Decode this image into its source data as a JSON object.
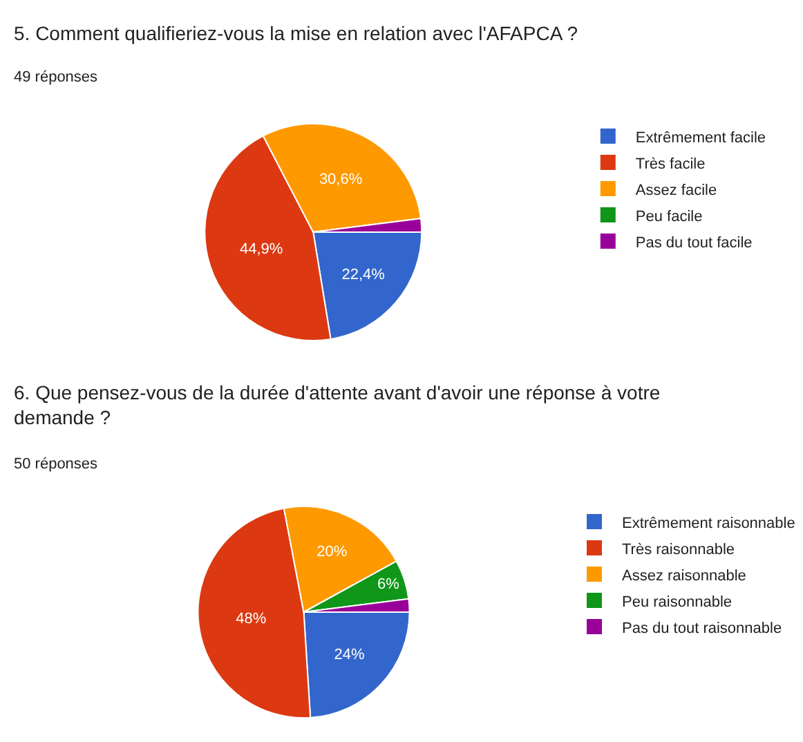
{
  "chart_data": [
    {
      "type": "pie",
      "title": "5. Comment qualifieriez-vous la mise en relation avec l'AFAPCA ?",
      "subtitle": "49 réponses",
      "categories": [
        "Extrêmement facile",
        "Très facile",
        "Assez facile",
        "Peu facile",
        "Pas du tout facile"
      ],
      "values": [
        22.4,
        44.9,
        30.6,
        0,
        2.0
      ],
      "colors": [
        "#3366cc",
        "#dc3912",
        "#ff9900",
        "#109618",
        "#990099"
      ],
      "value_labels": [
        "22,4%",
        "44,9%",
        "30,6%",
        null,
        null
      ],
      "legend": "right"
    },
    {
      "type": "pie",
      "title": "6. Que pensez-vous de la durée d'attente avant d'avoir une réponse à votre demande ?",
      "subtitle": "50 réponses",
      "categories": [
        "Extrêmement raisonnable",
        "Très raisonnable",
        "Assez raisonnable",
        "Peu raisonnable",
        "Pas du tout raisonnable"
      ],
      "values": [
        24,
        48,
        20,
        6,
        2
      ],
      "colors": [
        "#3366cc",
        "#dc3912",
        "#ff9900",
        "#109618",
        "#990099"
      ],
      "value_labels": [
        "24%",
        "48%",
        "20%",
        "6%",
        null
      ],
      "legend": "right"
    }
  ]
}
